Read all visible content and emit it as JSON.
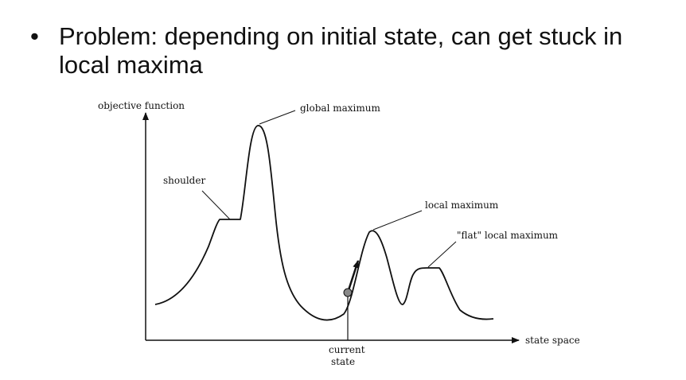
{
  "bullet": {
    "text": "Problem: depending on initial state, can get stuck in local maxima"
  },
  "diagram": {
    "y_axis_label": "objective function",
    "x_axis_label": "state space",
    "annotations": {
      "global_maximum": "global maximum",
      "shoulder": "shoulder",
      "local_maximum": "local maximum",
      "flat_local_maximum": "\"flat\" local maximum",
      "current_state_line1": "current",
      "current_state_line2": "state"
    }
  }
}
